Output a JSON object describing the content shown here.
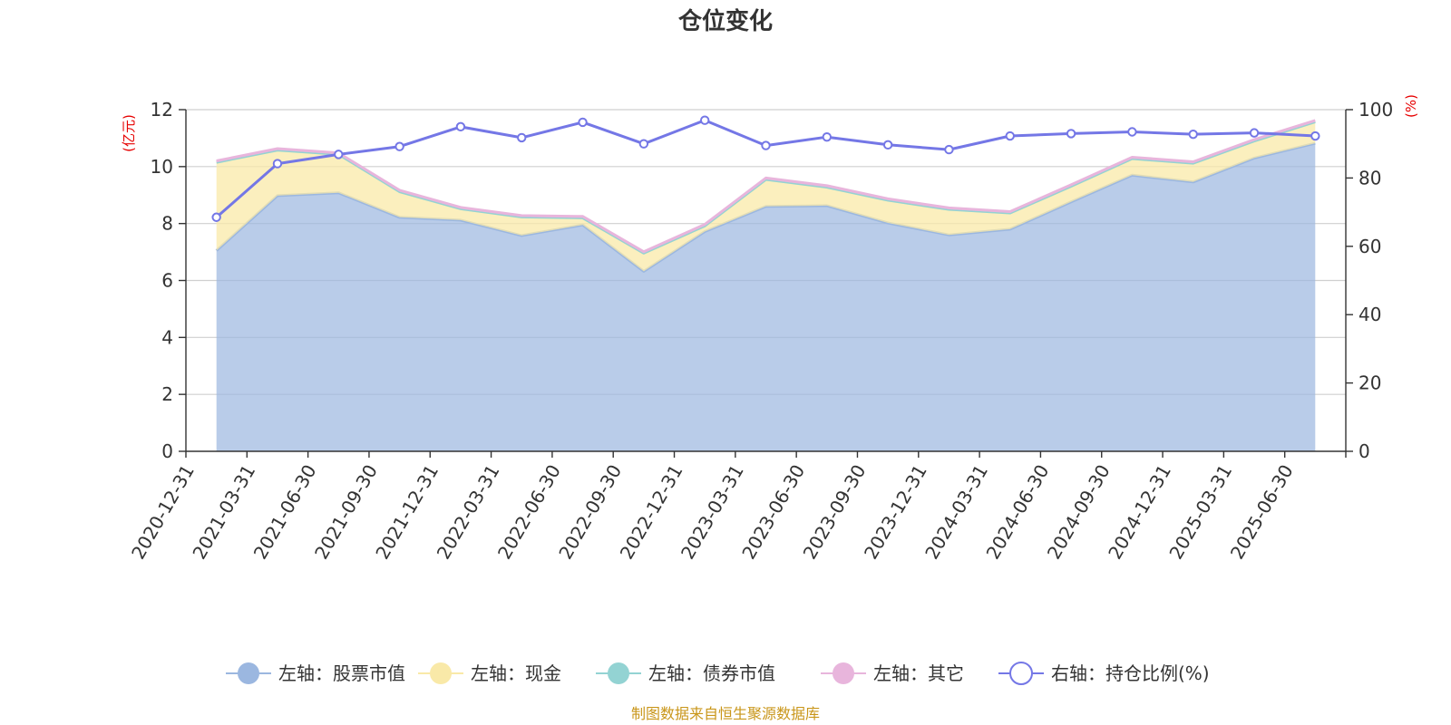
{
  "chart_data": {
    "type": "area",
    "title": "仓位变化",
    "left_unit": "(亿元)",
    "right_unit": "(%)",
    "source_note": "制图数据来自恒生聚源数据库",
    "x": [
      "2020-12-31",
      "2021-03-31",
      "2021-06-30",
      "2021-09-30",
      "2021-12-31",
      "2022-03-31",
      "2022-06-30",
      "2022-09-30",
      "2022-12-31",
      "2023-03-31",
      "2023-06-30",
      "2023-09-30",
      "2023-12-31",
      "2024-03-31",
      "2024-06-30",
      "2024-09-30",
      "2024-12-31",
      "2025-03-31",
      "2025-06-30"
    ],
    "left_axis": {
      "min": 0,
      "max": 12,
      "ticks": [
        0,
        2,
        4,
        6,
        8,
        10,
        12
      ]
    },
    "right_axis": {
      "min": 0,
      "max": 100,
      "ticks": [
        0,
        20,
        40,
        60,
        80,
        100
      ]
    },
    "grid": true,
    "legend_position": "bottom",
    "series": [
      {
        "name": "左轴：股票市值",
        "axis": "left",
        "stacked": true,
        "color": "#9bb7e0",
        "values": [
          7.05,
          8.98,
          9.08,
          8.22,
          8.12,
          7.58,
          7.95,
          6.32,
          7.72,
          8.6,
          8.63,
          8.02,
          7.6,
          7.8,
          8.76,
          9.7,
          9.46,
          10.3,
          10.82
        ]
      },
      {
        "name": "左轴：现金",
        "axis": "left",
        "stacked": true,
        "color": "#f9e9a8",
        "values": [
          3.1,
          1.6,
          1.35,
          0.9,
          0.4,
          0.65,
          0.25,
          0.64,
          0.2,
          0.95,
          0.65,
          0.8,
          0.9,
          0.57,
          0.55,
          0.58,
          0.66,
          0.6,
          0.75
        ]
      },
      {
        "name": "左轴：债券市值",
        "axis": "left",
        "stacked": true,
        "color": "#93d3d3",
        "values": [
          0,
          0,
          0,
          0,
          0,
          0,
          0,
          0,
          0,
          0,
          0,
          0,
          0,
          0,
          0,
          0,
          0,
          0,
          0
        ]
      },
      {
        "name": "左轴：其它",
        "axis": "left",
        "stacked": true,
        "color": "#e8b5dc",
        "values": [
          0.05,
          0.05,
          0.05,
          0.05,
          0.05,
          0.05,
          0.05,
          0.05,
          0.05,
          0.05,
          0.05,
          0.05,
          0.05,
          0.05,
          0.05,
          0.05,
          0.05,
          0.05,
          0.05
        ]
      },
      {
        "name": "右轴：持仓比例(%)",
        "axis": "right",
        "type": "line",
        "color": "#7477e6",
        "values": [
          68.5,
          84.2,
          86.9,
          89.2,
          95.0,
          91.8,
          96.3,
          90.0,
          96.9,
          89.5,
          92.0,
          89.7,
          88.3,
          92.3,
          93.0,
          93.5,
          92.8,
          93.2,
          92.3
        ]
      }
    ]
  }
}
